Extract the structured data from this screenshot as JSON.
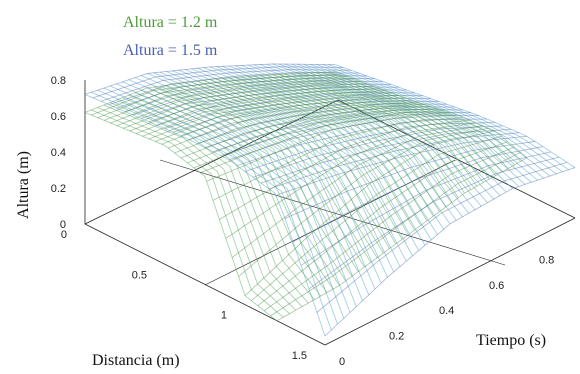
{
  "chart_data": {
    "type": "surface",
    "view": "3d",
    "title": "",
    "xlabel": "Distancia (m)",
    "ylabel": "Tiempo (s)",
    "zlabel": "Altura (m)",
    "x_ticks": [
      "0",
      "0.5",
      "1",
      "1.5"
    ],
    "y_ticks": [
      "0",
      "0.2",
      "0.4",
      "0.6",
      "0.8"
    ],
    "z_ticks": [
      "0",
      "0.2",
      "0.4",
      "0.6",
      "0.8"
    ],
    "xlim": [
      0,
      1.5
    ],
    "ylim": [
      0,
      1.0
    ],
    "zlim": [
      0,
      0.8
    ],
    "grid": false,
    "legend_position": "top-left",
    "series": [
      {
        "name": "Altura = 1.2 m",
        "color": "#4f9a3a",
        "profiles": [
          {
            "t": 0.0,
            "x": [
              0,
              0.25,
              0.5,
              0.75,
              1.0,
              1.2
            ],
            "h": [
              0.62,
              0.64,
              0.66,
              0.6,
              0.05,
              0.0
            ]
          },
          {
            "t": 0.25,
            "x": [
              0,
              0.25,
              0.5,
              0.75,
              1.0,
              1.2
            ],
            "h": [
              0.58,
              0.6,
              0.62,
              0.56,
              0.2,
              0.02
            ]
          },
          {
            "t": 0.5,
            "x": [
              0,
              0.25,
              0.5,
              0.75,
              1.0,
              1.2
            ],
            "h": [
              0.45,
              0.47,
              0.5,
              0.52,
              0.32,
              0.1
            ]
          },
          {
            "t": 0.75,
            "x": [
              0,
              0.25,
              0.5,
              0.75,
              1.0,
              1.2
            ],
            "h": [
              0.3,
              0.33,
              0.36,
              0.4,
              0.36,
              0.18
            ]
          },
          {
            "t": 1.0,
            "x": [
              0,
              0.25,
              0.5,
              0.75,
              1.0,
              1.2
            ],
            "h": [
              0.14,
              0.17,
              0.2,
              0.24,
              0.26,
              0.2
            ]
          }
        ]
      },
      {
        "name": "Altura = 1.5 m",
        "color": "#4a5fb0",
        "profiles": [
          {
            "t": 0.0,
            "x": [
              0,
              0.3,
              0.6,
              0.9,
              1.2,
              1.5
            ],
            "h": [
              0.72,
              0.74,
              0.76,
              0.76,
              0.7,
              0.05
            ]
          },
          {
            "t": 0.25,
            "x": [
              0,
              0.3,
              0.6,
              0.9,
              1.2,
              1.5
            ],
            "h": [
              0.66,
              0.68,
              0.7,
              0.7,
              0.64,
              0.2
            ]
          },
          {
            "t": 0.5,
            "x": [
              0,
              0.3,
              0.6,
              0.9,
              1.2,
              1.5
            ],
            "h": [
              0.52,
              0.55,
              0.58,
              0.6,
              0.56,
              0.32
            ]
          },
          {
            "t": 0.75,
            "x": [
              0,
              0.3,
              0.6,
              0.9,
              1.2,
              1.5
            ],
            "h": [
              0.36,
              0.4,
              0.44,
              0.48,
              0.46,
              0.34
            ]
          },
          {
            "t": 1.0,
            "x": [
              0,
              0.3,
              0.6,
              0.9,
              1.2,
              1.5
            ],
            "h": [
              0.18,
              0.22,
              0.26,
              0.3,
              0.32,
              0.28
            ]
          }
        ]
      }
    ]
  }
}
